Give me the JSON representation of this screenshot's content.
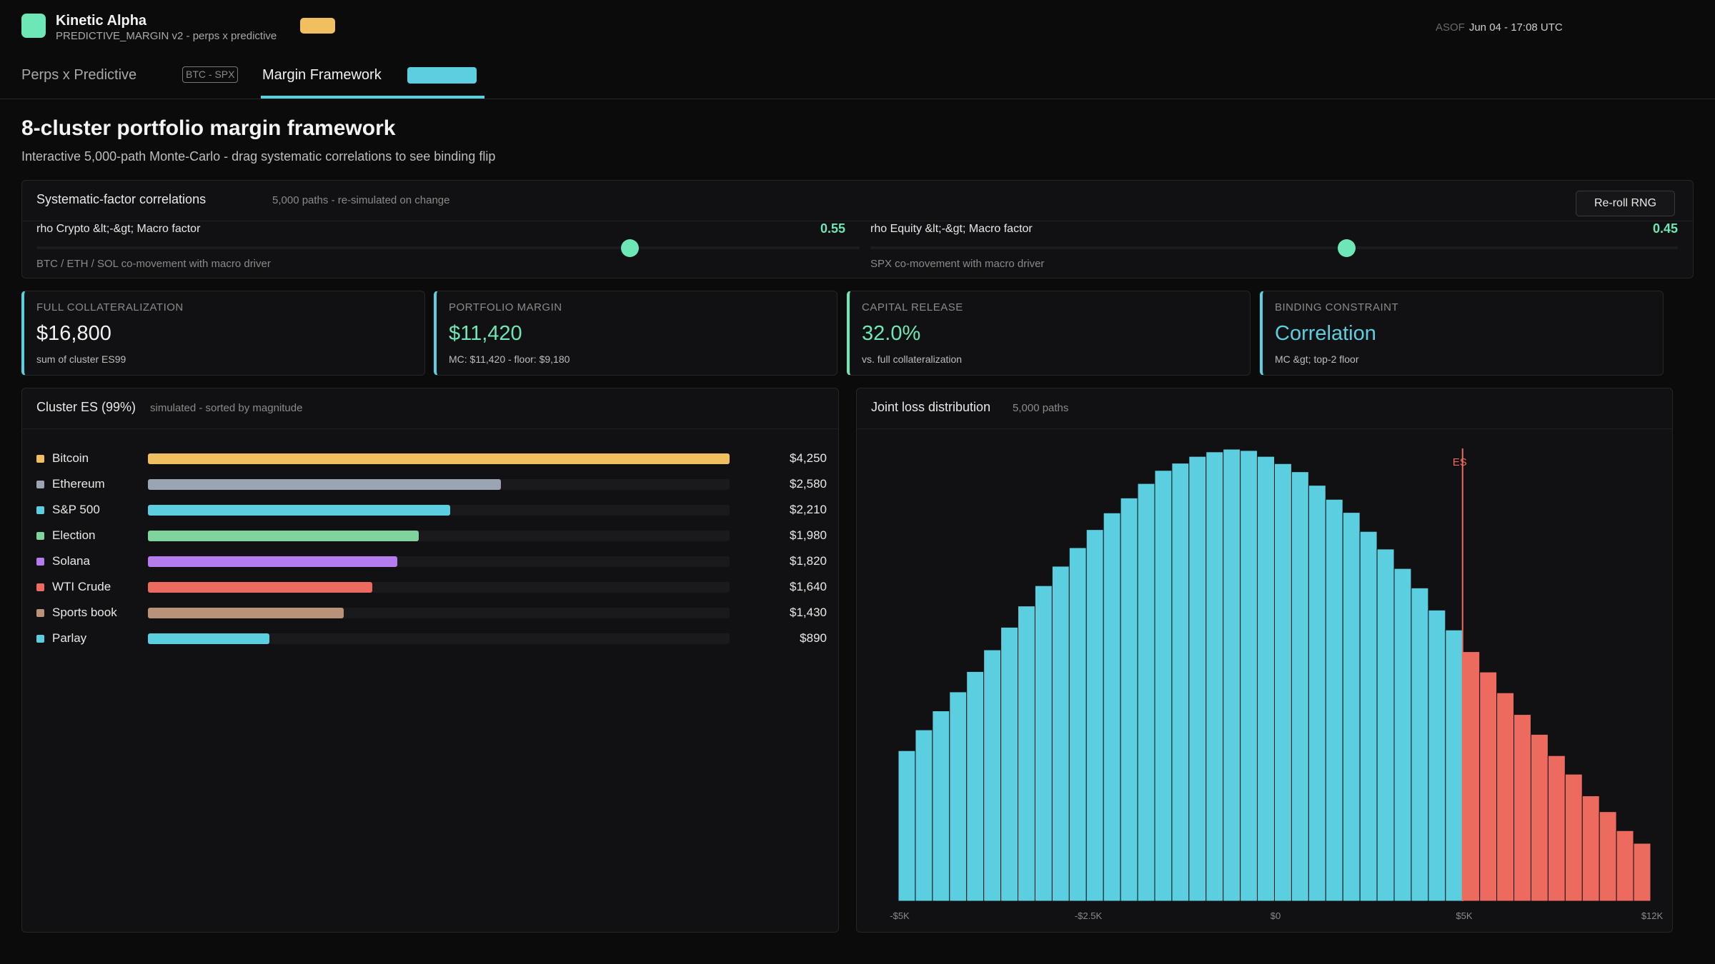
{
  "header": {
    "brand": "Kinetic Alpha",
    "brand_sub": "PREDICTIVE_MARGIN v2 - perps x predictive",
    "asof_key": "ASOF",
    "asof_value": "Jun 04 - 17:08 UTC"
  },
  "tabs": {
    "tab1_label": "Perps x Predictive",
    "tab1_badge": "BTC - SPX",
    "tab2_label": "Margin Framework"
  },
  "page": {
    "title": "8-cluster portfolio margin framework",
    "subtitle": "Interactive 5,000-path Monte-Carlo - drag systematic correlations to see binding flip"
  },
  "correlations": {
    "title": "Systematic-factor correlations",
    "note": "5,000 paths - re-simulated on change",
    "reroll_label": "Re-roll RNG",
    "sliders": [
      {
        "label": "rho Crypto &lt;-&gt; Macro factor",
        "value": 0.55,
        "value_label": "0.55",
        "desc": "BTC / ETH / SOL co-movement with macro driver"
      },
      {
        "label": "rho Equity &lt;-&gt; Macro factor",
        "value": 0.45,
        "value_label": "0.45",
        "desc": "SPX co-movement with macro driver"
      }
    ]
  },
  "kpis": [
    {
      "label": "FULL COLLATERALIZATION",
      "value": "$16,800",
      "detail": "sum of cluster ES99",
      "accent": "#5bcfe0",
      "value_color": "#f1f1f1"
    },
    {
      "label": "PORTFOLIO MARGIN",
      "value": "$11,420",
      "detail": "MC: $11,420 - floor: $9,180",
      "accent": "#5bcfe0",
      "value_color": "#6ee7b7"
    },
    {
      "label": "CAPITAL RELEASE",
      "value": "32.0%",
      "detail": "vs. full collateralization",
      "accent": "#6ee7b7",
      "value_color": "#6ee7b7"
    },
    {
      "label": "BINDING CONSTRAINT",
      "value": "Correlation",
      "detail": "MC &gt; top-2 floor",
      "accent": "#5bcfe0",
      "value_color": "#5bcfe0"
    }
  ],
  "cluster_es": {
    "title": "Cluster ES (99%)",
    "note": "simulated - sorted by magnitude",
    "max": 4250,
    "rows": [
      {
        "name": "Bitcoin",
        "amount": "$4,250",
        "value": 4250,
        "color": "#f0c060"
      },
      {
        "name": "Ethereum",
        "amount": "$2,580",
        "value": 2580,
        "color": "#9aa4b2"
      },
      {
        "name": "S&P 500",
        "amount": "$2,210",
        "value": 2210,
        "color": "#5bcfe0"
      },
      {
        "name": "Election",
        "amount": "$1,980",
        "value": 1980,
        "color": "#7ed49a"
      },
      {
        "name": "Solana",
        "amount": "$1,820",
        "value": 1820,
        "color": "#b57cf0"
      },
      {
        "name": "WTI Crude",
        "amount": "$1,640",
        "value": 1640,
        "color": "#ec6a5e"
      },
      {
        "name": "Sports book",
        "amount": "$1,430",
        "value": 1430,
        "color": "#b8937a"
      },
      {
        "name": "Parlay",
        "amount": "$890",
        "value": 890,
        "color": "#5bcfe0"
      }
    ]
  },
  "joint_loss": {
    "title": "Joint loss distribution",
    "note": "5,000 paths",
    "es_label": "ES",
    "x_ticks": [
      "-$5K",
      "-$2.5K",
      "$0",
      "$5K",
      "$12K"
    ],
    "colors": {
      "body": "#5bcfe0",
      "tail": "#ec6a5e",
      "es_line": "#ec6a5e",
      "tick": "#8a8a8a"
    }
  },
  "chart_data": {
    "type": "bar",
    "title": "Joint loss distribution",
    "x_ticks": [
      "-$5K",
      "-$2.5K",
      "$0",
      "$5K",
      "$12K"
    ],
    "es_marker_label": "ES",
    "series": [
      {
        "values": [
          0.333,
          0.379,
          0.421,
          0.463,
          0.508,
          0.556,
          0.606,
          0.653,
          0.698,
          0.741,
          0.782,
          0.822,
          0.859,
          0.892,
          0.924,
          0.953,
          0.969,
          0.984,
          0.994,
          1.0,
          0.997,
          0.984,
          0.968,
          0.95,
          0.92,
          0.889,
          0.86,
          0.818,
          0.779,
          0.736,
          0.693,
          0.644,
          0.6,
          0.552,
          0.507,
          0.461,
          0.413,
          0.369,
          0.322,
          0.281,
          0.233,
          0.198,
          0.156,
          0.128
        ]
      }
    ],
    "tail_start_index": 33
  }
}
